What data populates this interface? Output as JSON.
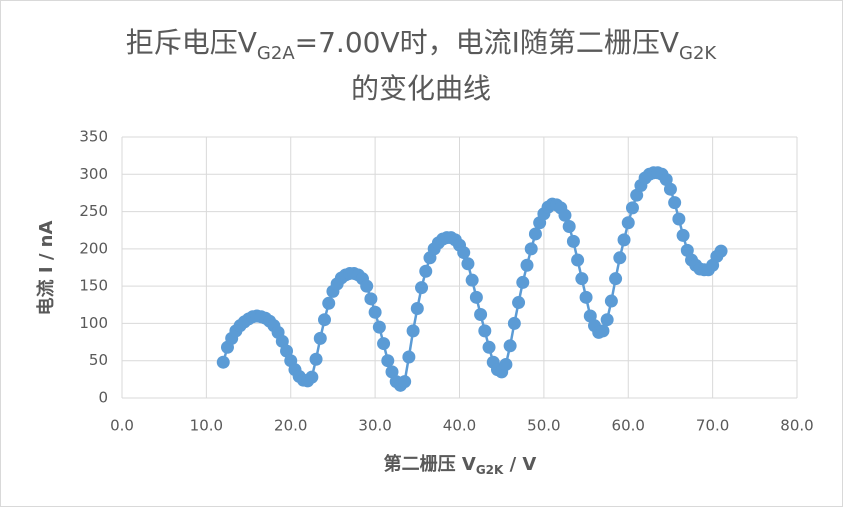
{
  "chart_data": {
    "type": "scatter-line",
    "title": {
      "line1": [
        "拒斥电压V",
        "G2A",
        "=7.00V时，电流I随第二栅压V",
        "G2K"
      ],
      "line2": "的变化曲线"
    },
    "x_label": [
      "第二栅压 V",
      "G2K",
      " / V"
    ],
    "y_label": "电流 I / nA",
    "x": [
      12,
      12.5,
      13,
      13.5,
      14,
      14.5,
      15,
      15.5,
      16,
      16.5,
      17,
      17.5,
      18,
      18.5,
      19,
      19.5,
      20,
      20.5,
      21,
      21.5,
      22,
      22.5,
      23,
      23.5,
      24,
      24.5,
      25,
      25.5,
      26,
      26.5,
      27,
      27.5,
      28,
      28.5,
      29,
      29.5,
      30,
      30.5,
      31,
      31.5,
      32,
      32.5,
      33,
      33.5,
      34,
      34.5,
      35,
      35.5,
      36,
      36.5,
      37,
      37.5,
      38,
      38.5,
      39,
      39.5,
      40,
      40.5,
      41,
      41.5,
      42,
      42.5,
      43,
      43.5,
      44,
      44.5,
      45,
      45.5,
      46,
      46.5,
      47,
      47.5,
      48,
      48.5,
      49,
      49.5,
      50,
      50.5,
      51,
      51.5,
      52,
      52.5,
      53,
      53.5,
      54,
      54.5,
      55,
      55.5,
      56,
      56.5,
      57,
      57.5,
      58,
      58.5,
      59,
      59.5,
      60,
      60.5,
      61,
      61.5,
      62,
      62.5,
      63,
      63.5,
      64,
      64.5,
      65,
      65.5,
      66,
      66.5,
      67,
      67.5,
      68,
      68.5,
      69,
      69.5,
      70,
      70.5,
      71
    ],
    "series": [
      {
        "color": "#5b9bd5",
        "values": [
          48,
          68,
          80,
          90,
          97,
          102,
          106,
          109,
          110,
          109,
          107,
          103,
          97,
          88,
          76,
          63,
          50,
          38,
          29,
          24,
          23,
          28,
          52,
          80,
          105,
          127,
          143,
          153,
          161,
          165,
          167,
          167,
          165,
          160,
          150,
          133,
          115,
          95,
          73,
          50,
          35,
          22,
          17,
          22,
          55,
          90,
          120,
          148,
          170,
          188,
          200,
          208,
          213,
          215,
          215,
          212,
          205,
          195,
          180,
          158,
          135,
          112,
          90,
          68,
          48,
          38,
          35,
          45,
          70,
          100,
          128,
          155,
          178,
          200,
          220,
          235,
          247,
          256,
          260,
          259,
          255,
          245,
          230,
          210,
          185,
          160,
          135,
          110,
          97,
          88,
          90,
          105,
          130,
          160,
          188,
          212,
          235,
          255,
          272,
          285,
          295,
          300,
          302,
          302,
          300,
          293,
          280,
          262,
          240,
          218,
          198,
          185,
          178,
          173,
          172,
          172,
          178,
          190,
          197
        ]
      }
    ],
    "xlim": [
      0,
      80
    ],
    "xticks": [
      {
        "value": 0,
        "label": "0.0"
      },
      {
        "value": 10,
        "label": "10.0"
      },
      {
        "value": 20,
        "label": "20.0"
      },
      {
        "value": 30,
        "label": "30.0"
      },
      {
        "value": 40,
        "label": "40.0"
      },
      {
        "value": 50,
        "label": "50.0"
      },
      {
        "value": 60,
        "label": "60.0"
      },
      {
        "value": 70,
        "label": "70.0"
      },
      {
        "value": 80,
        "label": "80.0"
      }
    ],
    "ylim": [
      0,
      350
    ],
    "yticks": [
      0,
      50,
      100,
      150,
      200,
      250,
      300,
      350
    ],
    "grid": true
  }
}
